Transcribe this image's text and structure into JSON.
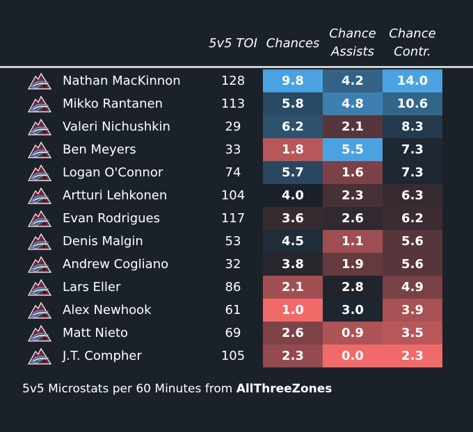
{
  "header": {
    "toi": "5v5 TOI",
    "chances": "Chances",
    "assists_line1": "Chance",
    "assists_line2": "Assists",
    "contr_line1": "Chance",
    "contr_line2": "Contr."
  },
  "colors": {
    "background": "#1b2129",
    "high": "#4aa3e0",
    "low": "#f06a6a",
    "neutral": "#1b2129"
  },
  "logo_icon": "colorado-avalanche-logo",
  "chart_data": {
    "type": "table",
    "columns": [
      "5v5 TOI",
      "Chances",
      "Chance Assists",
      "Chance Contr."
    ],
    "rows": [
      {
        "name": "Nathan MacKinnon",
        "toi": "128",
        "chances": "9.8",
        "assists": "4.2",
        "contr": "14.0"
      },
      {
        "name": "Mikko Rantanen",
        "toi": "113",
        "chances": "5.8",
        "assists": "4.8",
        "contr": "10.6"
      },
      {
        "name": "Valeri Nichushkin",
        "toi": "29",
        "chances": "6.2",
        "assists": "2.1",
        "contr": "8.3"
      },
      {
        "name": "Ben Meyers",
        "toi": "33",
        "chances": "1.8",
        "assists": "5.5",
        "contr": "7.3"
      },
      {
        "name": "Logan O'Connor",
        "toi": "74",
        "chances": "5.7",
        "assists": "1.6",
        "contr": "7.3"
      },
      {
        "name": "Artturi Lehkonen",
        "toi": "104",
        "chances": "4.0",
        "assists": "2.3",
        "contr": "6.3"
      },
      {
        "name": "Evan Rodrigues",
        "toi": "117",
        "chances": "3.6",
        "assists": "2.6",
        "contr": "6.2"
      },
      {
        "name": "Denis Malgin",
        "toi": "53",
        "chances": "4.5",
        "assists": "1.1",
        "contr": "5.6"
      },
      {
        "name": "Andrew Cogliano",
        "toi": "32",
        "chances": "3.8",
        "assists": "1.9",
        "contr": "5.6"
      },
      {
        "name": "Lars Eller",
        "toi": "86",
        "chances": "2.1",
        "assists": "2.8",
        "contr": "4.9"
      },
      {
        "name": "Alex Newhook",
        "toi": "61",
        "chances": "1.0",
        "assists": "3.0",
        "contr": "3.9"
      },
      {
        "name": "Matt Nieto",
        "toi": "69",
        "chances": "2.6",
        "assists": "0.9",
        "contr": "3.5"
      },
      {
        "name": "J.T. Compher",
        "toi": "105",
        "chances": "2.3",
        "assists": "0.0",
        "contr": "2.3"
      }
    ],
    "color_scale": {
      "chances": {
        "low": 1.0,
        "mid": 4.0,
        "high": 9.8
      },
      "assists": {
        "low": 0.0,
        "mid": 2.9,
        "high": 5.5
      },
      "contr": {
        "low": 2.3,
        "mid": 6.9,
        "high": 14.0
      }
    }
  },
  "footer": {
    "prefix": "5v5 Microstats per 60 Minutes from ",
    "source": "AllThreeZones"
  }
}
